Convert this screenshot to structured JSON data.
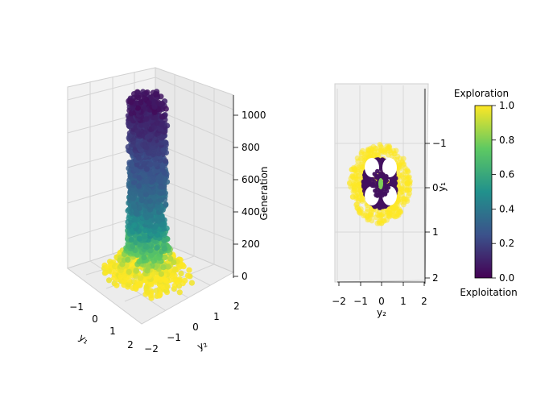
{
  "chart_data": [
    {
      "type": "scatter",
      "projection": "3d",
      "xlabel": "y₁",
      "ylabel": "y₂",
      "zlabel": "Generation",
      "xlim": [
        -2,
        2
      ],
      "ylim": [
        -2,
        2
      ],
      "zlim": [
        0,
        1100
      ],
      "x_ticks": [
        "−1",
        "0",
        "1",
        "2"
      ],
      "y_ticks": [
        "−2",
        "−1",
        "0",
        "1",
        "2"
      ],
      "z_ticks": [
        "0",
        "200",
        "400",
        "600",
        "800",
        "1000"
      ],
      "color_by": "exploration",
      "layers": [
        {
          "generation": 0,
          "radius": 1.4,
          "exploration": 1.0
        },
        {
          "generation": 60,
          "radius": 1.0,
          "exploration": 1.0
        },
        {
          "generation": 150,
          "radius": 0.7,
          "exploration": 0.75
        },
        {
          "generation": 300,
          "radius": 0.6,
          "exploration": 0.5
        },
        {
          "generation": 500,
          "radius": 0.6,
          "exploration": 0.35
        },
        {
          "generation": 700,
          "radius": 0.6,
          "exploration": 0.25
        },
        {
          "generation": 1000,
          "radius": 0.6,
          "exploration": 0.1
        },
        {
          "generation": 1100,
          "radius": 0.6,
          "exploration": 0.05
        }
      ]
    },
    {
      "type": "scatter",
      "projection": "3d-top-view",
      "xlabel": "y₂",
      "ylabel": "y₁",
      "xlim": [
        -2,
        2
      ],
      "ylim": [
        2,
        -2
      ],
      "x_ticks": [
        "−2",
        "−1",
        "0",
        "1",
        "2"
      ],
      "y_ticks": [
        "−1",
        "0",
        "1",
        "2"
      ],
      "outer_cloud": {
        "radius_y2": 1.4,
        "radius_y1": 1.8,
        "exploration": 1.0
      },
      "inner_ring": {
        "radius_y2": 0.75,
        "radius_y1": 1.1,
        "exploration": 0.05
      }
    }
  ],
  "colorbar": {
    "title": "Exploration",
    "bottom_label": "Exploitation",
    "range": [
      0,
      1
    ],
    "ticks": [
      "0.0",
      "0.2",
      "0.4",
      "0.6",
      "0.8",
      "1.0"
    ],
    "colormap": "viridis",
    "stops": [
      "#440154",
      "#3b528b",
      "#21918c",
      "#5ec962",
      "#fde725"
    ]
  }
}
